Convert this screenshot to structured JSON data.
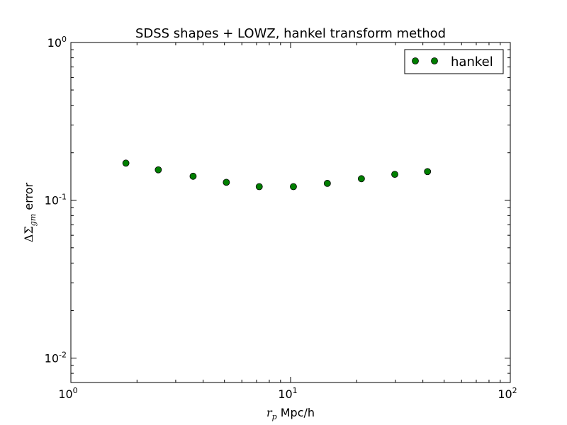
{
  "chart_data": {
    "type": "scatter",
    "title": "SDSS shapes + LOWZ, hankel transform method",
    "xlabel": {
      "symbol": "r",
      "subscript": "p",
      "unit": " Mpc/h"
    },
    "ylabel": {
      "symbol": "ΔΣ",
      "subscript": "gm",
      "suffix": " error"
    },
    "xscale": "log",
    "yscale": "log",
    "xlim": [
      1,
      100
    ],
    "ylim": [
      0.007,
      1
    ],
    "xticks": [
      {
        "value": 1,
        "base": "10",
        "exp": "0"
      },
      {
        "value": 10,
        "base": "10",
        "exp": "1"
      },
      {
        "value": 100,
        "base": "10",
        "exp": "2"
      }
    ],
    "yticks": [
      {
        "value": 0.01,
        "base": "10",
        "exp": "-2"
      },
      {
        "value": 0.1,
        "base": "10",
        "exp": "-1"
      },
      {
        "value": 1,
        "base": "10",
        "exp": "0"
      }
    ],
    "grid": false,
    "legend_position": "top-right",
    "series": [
      {
        "name": "hankel",
        "color": "#007f00",
        "marker": "circle",
        "x": [
          1.78,
          2.5,
          3.6,
          5.1,
          7.2,
          10.3,
          14.7,
          21.0,
          29.8,
          42.0
        ],
        "y": [
          0.172,
          0.156,
          0.142,
          0.13,
          0.122,
          0.122,
          0.128,
          0.137,
          0.146,
          0.152
        ]
      }
    ]
  }
}
